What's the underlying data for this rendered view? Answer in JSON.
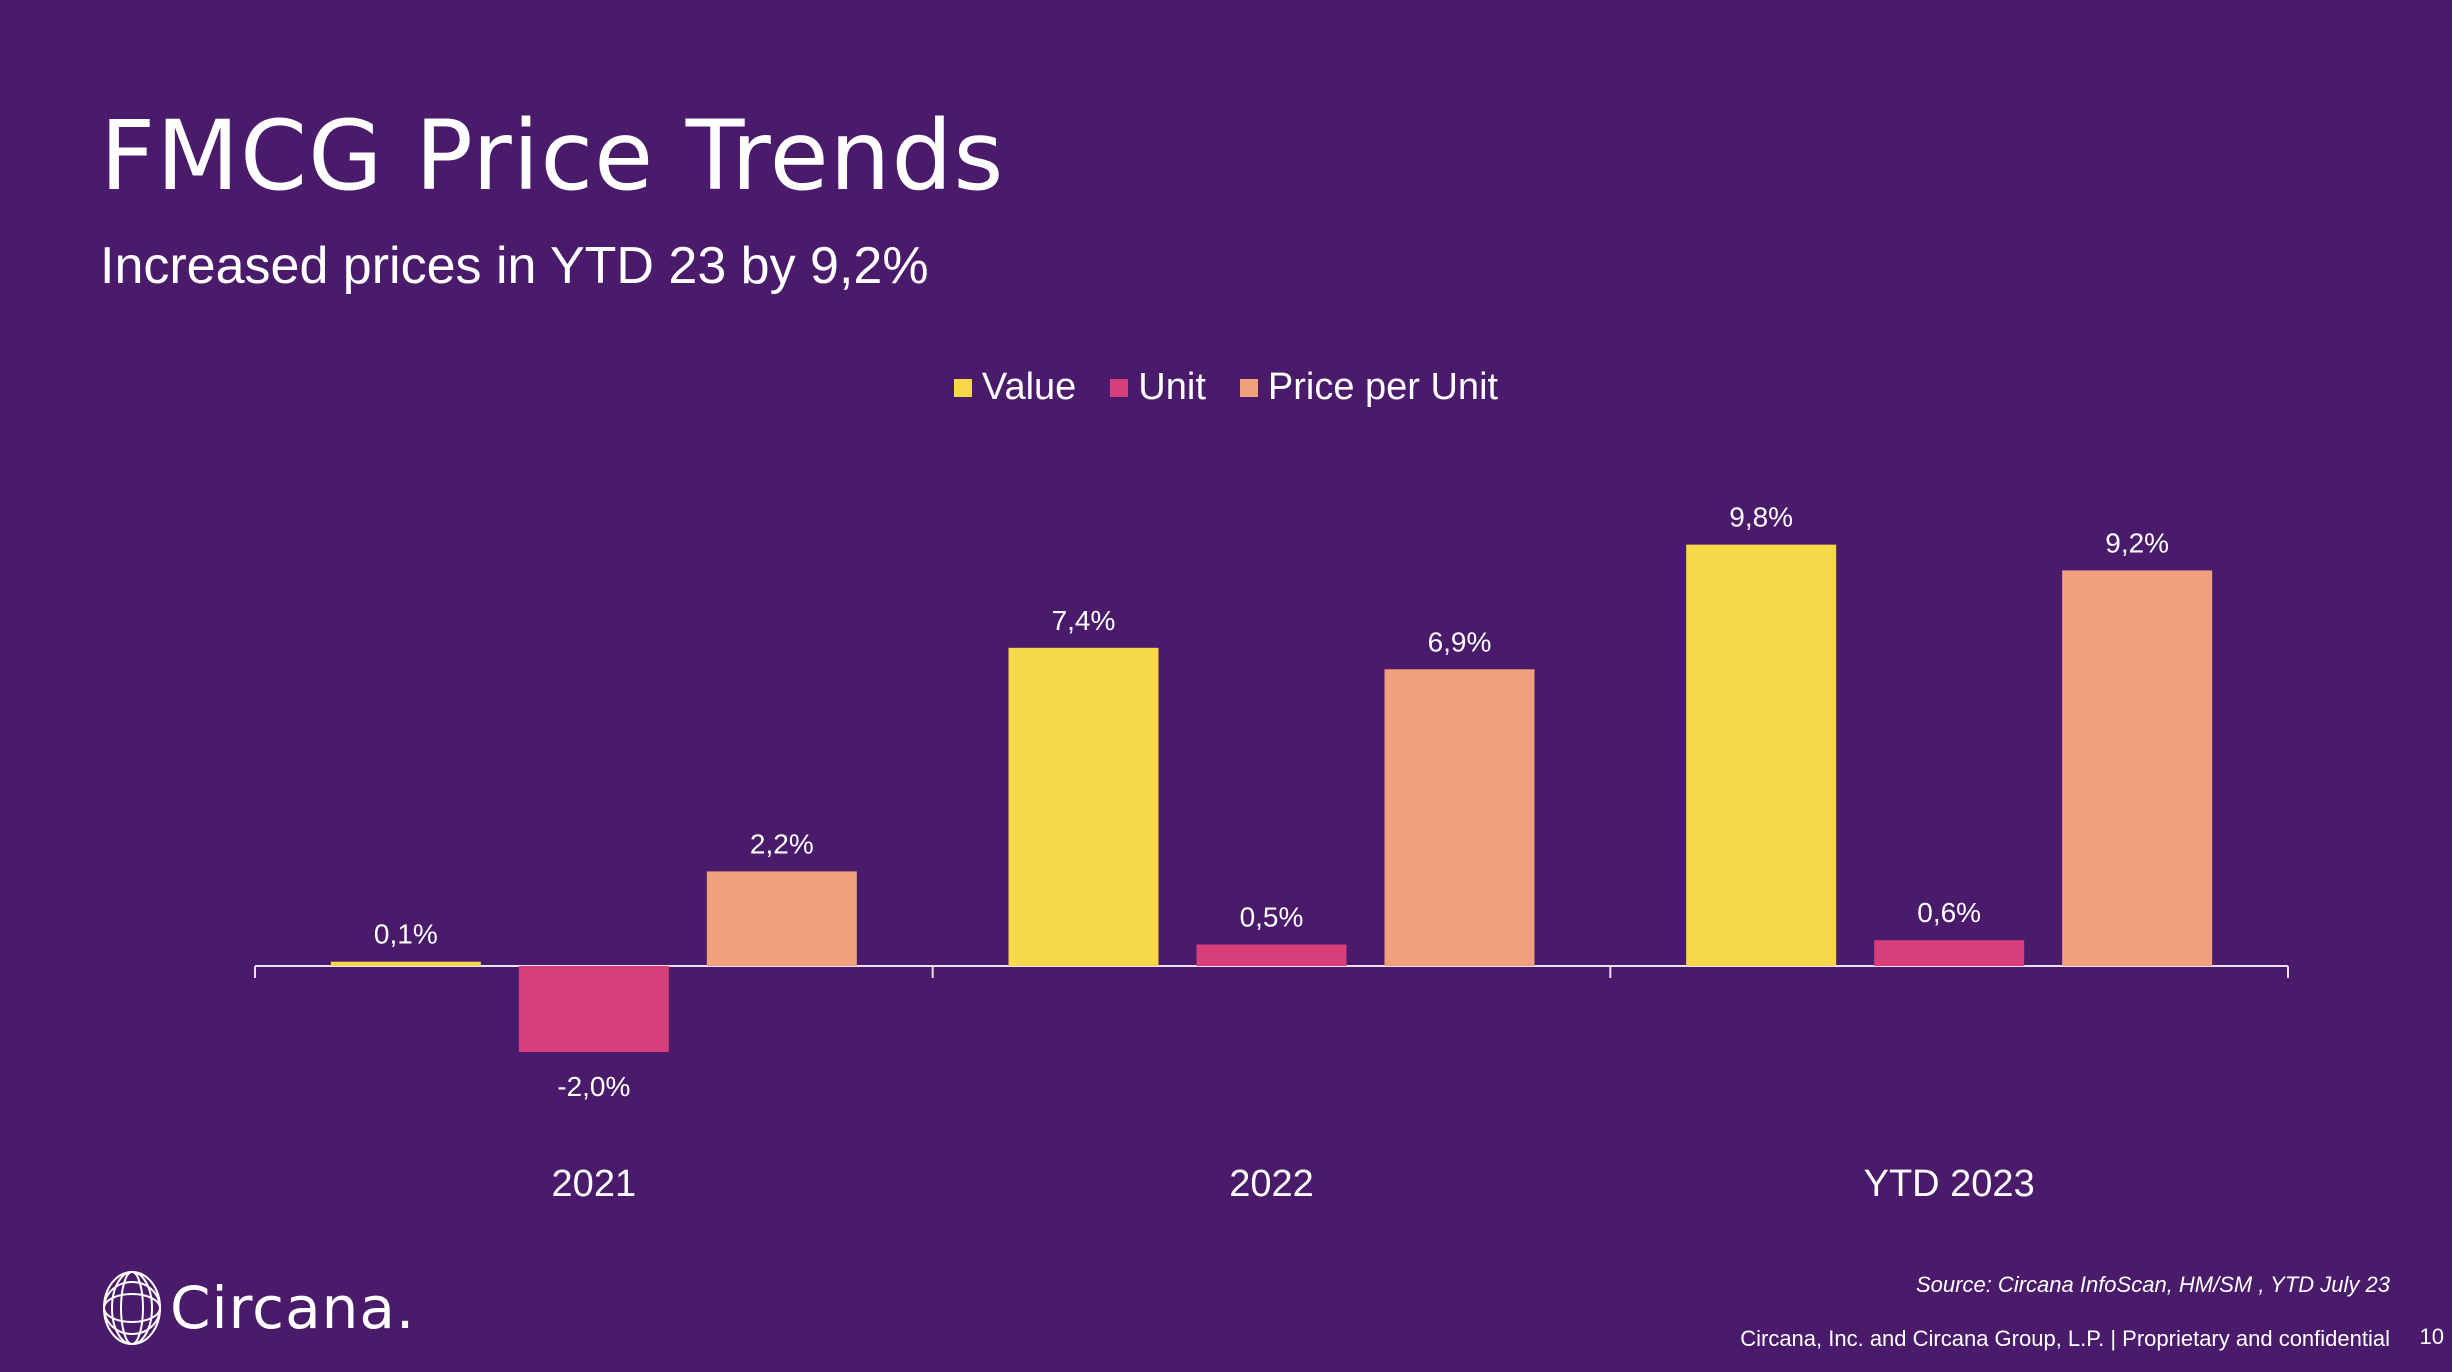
{
  "title": "FMCG Price Trends",
  "subtitle": "Increased prices in YTD 23 by 9,2%",
  "source": "Source: Circana InfoScan, HM/SM , YTD July 23",
  "footer": "Circana, Inc. and Circana Group, L.P. |  Proprietary and confidential",
  "page_number": "10",
  "logo_text": "Circana.",
  "chart_data": {
    "type": "bar",
    "categories": [
      "2021",
      "2022",
      "YTD 2023"
    ],
    "series": [
      {
        "name": "Value",
        "color": "#f7d84a",
        "values": [
          0.1,
          7.4,
          9.8
        ],
        "labels": [
          "0,1%",
          "7,4%",
          "9,8%"
        ]
      },
      {
        "name": "Unit",
        "color": "#d63f79",
        "values": [
          -2.0,
          0.5,
          0.6
        ],
        "labels": [
          "-2,0%",
          "0,5%",
          "0,6%"
        ]
      },
      {
        "name": "Price per Unit",
        "color": "#f0a07c",
        "values": [
          2.2,
          6.9,
          9.2
        ],
        "labels": [
          "2,2%",
          "6,9%",
          "9,2%"
        ]
      }
    ],
    "legend_position": "top-center",
    "grid": false
  }
}
